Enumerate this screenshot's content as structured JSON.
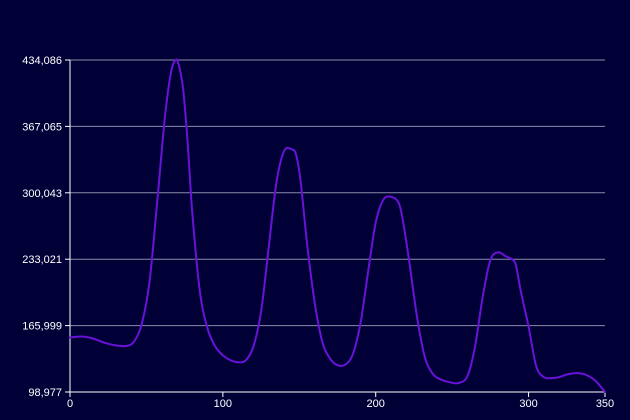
{
  "colors": {
    "background": "#000037",
    "line": "#6a12d8",
    "grid": "#8a8aa8",
    "axis": "#ffffff",
    "text": "#ffffff"
  },
  "chart_data": {
    "type": "line",
    "title": "",
    "xlabel": "",
    "ylabel": "",
    "xlim": [
      0,
      350
    ],
    "ylim": [
      98977,
      434086
    ],
    "x_ticks": [
      0,
      100,
      200,
      300,
      350
    ],
    "x_tick_labels": [
      "0",
      "100",
      "200",
      "300",
      "350"
    ],
    "y_ticks": [
      98977,
      165999,
      233021,
      300043,
      367065,
      434086
    ],
    "y_tick_labels": [
      "98,977",
      "165,999",
      "233,021",
      "300,043",
      "367,065",
      "434,086"
    ],
    "grid": "horizontal",
    "legend": "none",
    "series": [
      {
        "x": [
          0,
          8,
          15,
          22,
          30,
          37,
          42,
          47,
          52,
          57,
          62,
          66,
          69,
          71,
          74,
          77,
          80,
          85,
          90,
          95,
          100,
          105,
          110,
          115,
          120,
          125,
          130,
          135,
          140,
          145,
          148,
          151,
          155,
          160,
          165,
          170,
          175,
          180,
          185,
          190,
          195,
          200,
          205,
          210,
          215,
          218,
          222,
          227,
          232,
          237,
          242,
          248,
          254,
          260,
          265,
          270,
          275,
          280,
          285,
          290,
          292,
          295,
          300,
          305,
          310,
          315,
          320,
          326,
          332,
          338,
          344,
          350
        ],
        "values": [
          154000,
          155000,
          153000,
          149000,
          146000,
          145500,
          150000,
          168000,
          210000,
          290000,
          375000,
          421000,
          434000,
          430000,
          405000,
          350000,
          280000,
          200000,
          163000,
          145000,
          136000,
          131000,
          129000,
          131000,
          145000,
          180000,
          245000,
          310000,
          342000,
          344000,
          338000,
          310000,
          250000,
          190000,
          150000,
          133000,
          126000,
          126500,
          137000,
          168000,
          220000,
          270000,
          293000,
          296000,
          290000,
          270000,
          230000,
          175000,
          135000,
          118000,
          112000,
          109000,
          108000,
          115000,
          145000,
          195000,
          232000,
          240000,
          236000,
          232000,
          225000,
          200000,
          165000,
          125000,
          114000,
          113000,
          114000,
          117000,
          118000,
          116000,
          110000,
          98977
        ]
      }
    ]
  }
}
